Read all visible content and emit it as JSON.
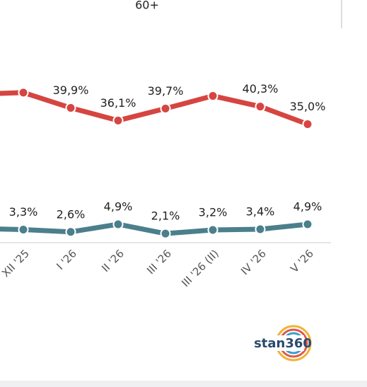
{
  "chart_data": {
    "type": "line",
    "title": "60+",
    "categories": [
      null,
      "XII '25",
      "I '26",
      "II '26",
      "III '26",
      "III '26 (II)",
      "IV '26",
      "V '26"
    ],
    "series": [
      {
        "color": "#d64541",
        "values": [
          44.0,
          44.5,
          39.9,
          36.1,
          39.7,
          43.5,
          40.3,
          35.0
        ],
        "value_labels": [
          null,
          null,
          "39,9%",
          "36,1%",
          "39,7%",
          null,
          "40,3%",
          "35,0%"
        ]
      },
      {
        "color": "#4b7f8c",
        "values": [
          3.6,
          3.3,
          2.6,
          4.9,
          2.1,
          3.2,
          3.4,
          4.9
        ],
        "value_labels": [
          null,
          "3,3%",
          "2,6%",
          "4,9%",
          "2,1%",
          "3,2%",
          "3,4%",
          "4,9%"
        ]
      }
    ],
    "ylim": [
      0,
      70
    ],
    "logo": "stan360"
  }
}
